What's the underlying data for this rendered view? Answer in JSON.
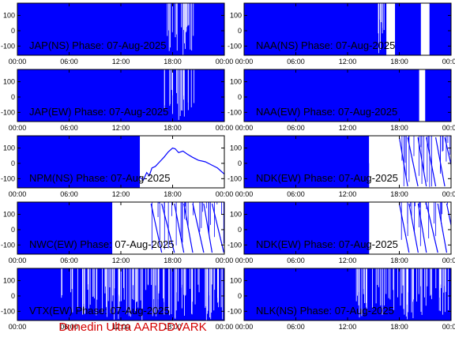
{
  "footer": {
    "text": "Dunedin Ultra AARDDVARK",
    "color": "#d40000"
  },
  "colors": {
    "trace": "#0000ff",
    "axis": "#000000",
    "background": "#ffffff"
  },
  "chart_data": [
    {
      "type": "line",
      "title": "JAP(NS) Phase: 07-Aug-2025",
      "x_ticks": [
        "00:00",
        "06:00",
        "12:00",
        "18:00",
        "00:00"
      ],
      "y_ticks": [
        "100",
        "0",
        "-100"
      ],
      "ylim": [
        -160,
        180
      ],
      "xlim_hours": [
        0,
        24
      ],
      "dense_until_hours": 24,
      "sparse_after_hours": [
        17,
        20.5
      ],
      "gaps": []
    },
    {
      "type": "line",
      "title": "NAA(NS) Phase: 07-Aug-2025",
      "x_ticks": [
        "00:00",
        "06:00",
        "12:00",
        "18:00",
        "00:00"
      ],
      "y_ticks": [
        "100",
        "0",
        "-100"
      ],
      "ylim": [
        -160,
        180
      ],
      "xlim_hours": [
        0,
        24
      ],
      "dense_until_hours": 24,
      "sparse_after_hours": [
        15,
        16.5
      ],
      "gaps": [
        [
          16.5,
          17.5
        ],
        [
          20.5,
          21.5
        ]
      ]
    },
    {
      "type": "line",
      "title": "JAP(EW) Phase: 07-Aug-2025",
      "x_ticks": [
        "00:00",
        "06:00",
        "12:00",
        "18:00",
        "00:00"
      ],
      "y_ticks": [
        "100",
        "0",
        "-100"
      ],
      "ylim": [
        -160,
        180
      ],
      "xlim_hours": [
        0,
        24
      ],
      "dense_until_hours": 24,
      "sparse_after_hours": [
        17,
        20.5
      ],
      "gaps": []
    },
    {
      "type": "line",
      "title": "NAA(EW) Phase: 07-Aug-2025",
      "x_ticks": [
        "00:00",
        "06:00",
        "12:00",
        "18:00",
        "00:00"
      ],
      "y_ticks": [
        "100",
        "0",
        "-100"
      ],
      "ylim": [
        -160,
        180
      ],
      "xlim_hours": [
        0,
        24
      ],
      "dense_until_hours": 24,
      "sparse_after_hours": [],
      "gaps": [
        [
          20.3,
          21.0
        ]
      ]
    },
    {
      "type": "line",
      "title": "NPM(NS) Phase: 07-Aug-2025",
      "x_ticks": [
        "00:00",
        "06:00",
        "12:00",
        "18:00",
        "00:00"
      ],
      "y_ticks": [
        "100",
        "0",
        "-100"
      ],
      "ylim": [
        -160,
        180
      ],
      "xlim_hours": [
        0,
        24
      ],
      "dense_until_hours": 14.2,
      "sparse_after_hours": [],
      "gaps": [],
      "trace_after": {
        "x": [
          14.2,
          14.6,
          15.0,
          15.3,
          15.6,
          16.0,
          16.5,
          17.0,
          17.5,
          18.0,
          18.3,
          18.7,
          19.2,
          19.7,
          20.3,
          21.0,
          21.8,
          22.5,
          23.2,
          24.0
        ],
        "y": [
          -90,
          -110,
          -60,
          -80,
          -30,
          -20,
          10,
          40,
          75,
          100,
          95,
          70,
          80,
          60,
          40,
          20,
          10,
          -10,
          -30,
          -70
        ]
      }
    },
    {
      "type": "line",
      "title": "NDK(EW) Phase: 07-Aug-2025",
      "x_ticks": [
        "00:00",
        "06:00",
        "12:00",
        "18:00",
        "00:00"
      ],
      "y_ticks": [
        "100",
        "0",
        "-100"
      ],
      "ylim": [
        -160,
        180
      ],
      "xlim_hours": [
        0,
        24
      ],
      "dense_until_hours": 14.5,
      "sparse_after_hours": [
        14.5,
        18
      ],
      "gaps": [],
      "ramps_start_hours": 18
    },
    {
      "type": "line",
      "title": "NWC(EW) Phase: 07-Aug-2025",
      "x_ticks": [
        "00:00",
        "06:00",
        "12:00",
        "18:00",
        "00:00"
      ],
      "y_ticks": [
        "100",
        "0",
        "-100"
      ],
      "ylim": [
        -160,
        180
      ],
      "xlim_hours": [
        0,
        24
      ],
      "dense_until_hours": 11,
      "sparse_after_hours": [
        11,
        14
      ],
      "gaps": [],
      "ramps_start_hours": 15.5
    },
    {
      "type": "line",
      "title": "NDK(EW) Phase: 07-Aug-2025",
      "x_ticks": [
        "00:00",
        "06:00",
        "12:00",
        "18:00",
        "00:00"
      ],
      "y_ticks": [
        "100",
        "0",
        "-100"
      ],
      "ylim": [
        -160,
        180
      ],
      "xlim_hours": [
        0,
        24
      ],
      "dense_until_hours": 14.5,
      "sparse_after_hours": [
        14.5,
        18
      ],
      "gaps": [],
      "ramps_start_hours": 18
    },
    {
      "type": "line",
      "title": "VTX(EW) Phase: 07-Aug-2025",
      "x_ticks": [
        "00:00",
        "06:00",
        "12:00",
        "18:00",
        "00:00"
      ],
      "y_ticks": [
        "100",
        "0",
        "-100"
      ],
      "ylim": [
        -160,
        180
      ],
      "xlim_hours": [
        0,
        24
      ],
      "dense_until_hours": 24,
      "sparse_after_hours": [
        5,
        24
      ],
      "gaps": []
    },
    {
      "type": "line",
      "title": "NLK(NS) Phase: 07-Aug-2025",
      "x_ticks": [
        "00:00",
        "06:00",
        "12:00",
        "18:00",
        "00:00"
      ],
      "y_ticks": [
        "100",
        "0",
        "-100"
      ],
      "ylim": [
        -160,
        180
      ],
      "xlim_hours": [
        0,
        24
      ],
      "dense_until_hours": 24,
      "sparse_after_hours": [
        13,
        24
      ],
      "gaps": []
    }
  ]
}
